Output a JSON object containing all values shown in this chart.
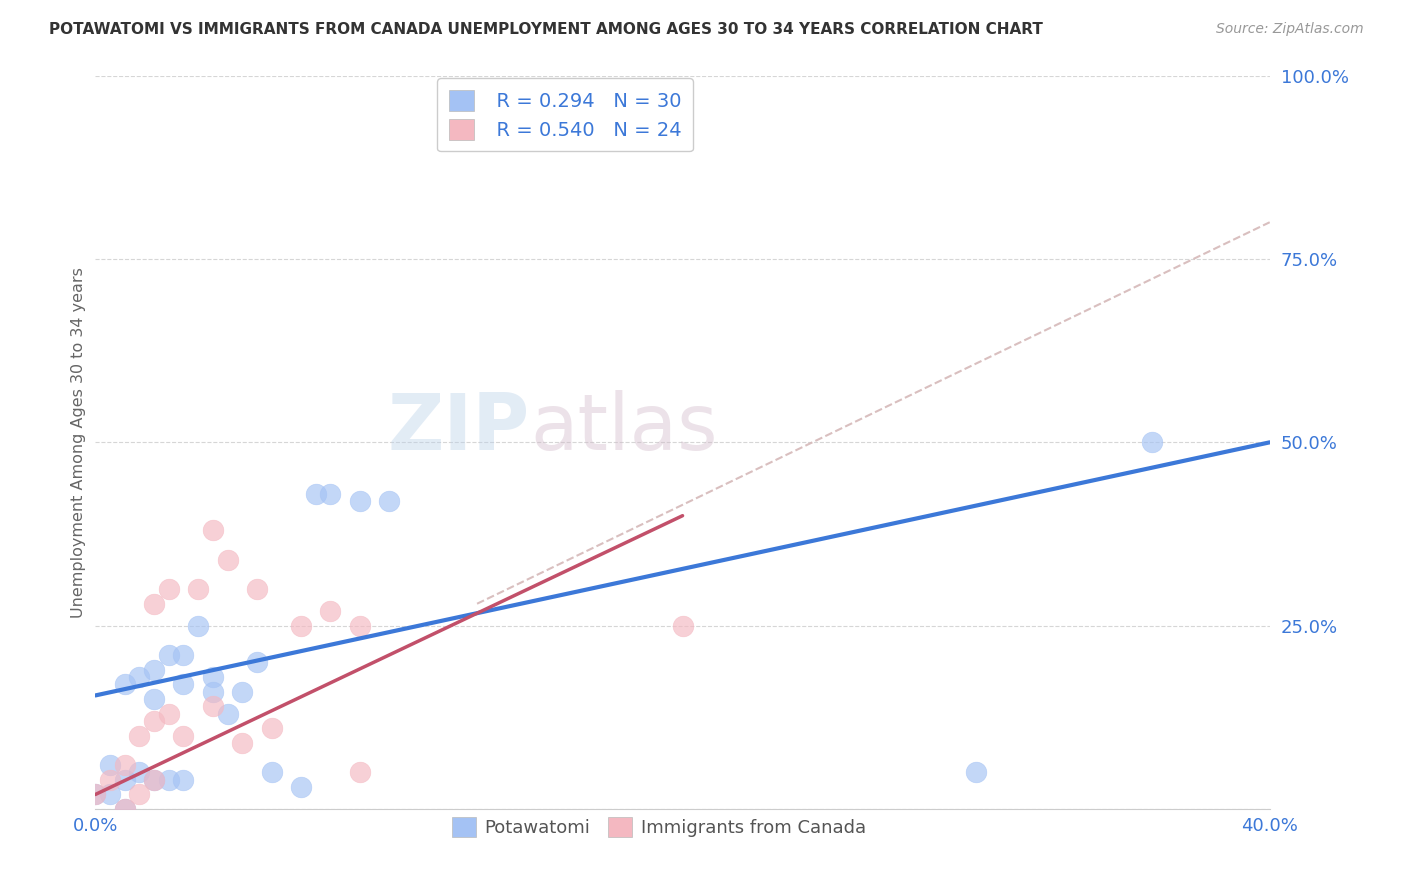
{
  "title": "POTAWATOMI VS IMMIGRANTS FROM CANADA UNEMPLOYMENT AMONG AGES 30 TO 34 YEARS CORRELATION CHART",
  "source": "Source: ZipAtlas.com",
  "ylabel": "Unemployment Among Ages 30 to 34 years",
  "xmin": 0.0,
  "xmax": 0.4,
  "ymin": 0.0,
  "ymax": 1.0,
  "xticks": [
    0.0,
    0.08,
    0.16,
    0.24,
    0.32,
    0.4
  ],
  "ytick_positions": [
    0.0,
    0.25,
    0.5,
    0.75,
    1.0
  ],
  "legend1_r": "R = 0.294",
  "legend1_n": "N = 30",
  "legend2_r": "R = 0.540",
  "legend2_n": "N = 24",
  "blue_scatter_color": "#a4c2f4",
  "pink_scatter_color": "#f4b8c1",
  "blue_line_color": "#3c78d8",
  "pink_line_color": "#c2506a",
  "dashed_line_color": "#d5b8b8",
  "watermark_zip": "ZIP",
  "watermark_atlas": "atlas",
  "potawatomi_x": [
    0.0,
    0.005,
    0.005,
    0.01,
    0.01,
    0.01,
    0.015,
    0.015,
    0.02,
    0.02,
    0.02,
    0.025,
    0.025,
    0.03,
    0.03,
    0.03,
    0.035,
    0.04,
    0.04,
    0.045,
    0.05,
    0.055,
    0.06,
    0.07,
    0.075,
    0.08,
    0.09,
    0.1,
    0.3,
    0.36
  ],
  "potawatomi_y": [
    0.02,
    0.02,
    0.06,
    0.0,
    0.04,
    0.17,
    0.05,
    0.18,
    0.04,
    0.15,
    0.19,
    0.04,
    0.21,
    0.04,
    0.17,
    0.21,
    0.25,
    0.18,
    0.16,
    0.13,
    0.16,
    0.2,
    0.05,
    0.03,
    0.43,
    0.43,
    0.42,
    0.42,
    0.05,
    0.5
  ],
  "canada_x": [
    0.0,
    0.005,
    0.01,
    0.01,
    0.015,
    0.015,
    0.02,
    0.02,
    0.02,
    0.025,
    0.025,
    0.03,
    0.035,
    0.04,
    0.04,
    0.045,
    0.05,
    0.055,
    0.06,
    0.07,
    0.08,
    0.09,
    0.09,
    0.2
  ],
  "canada_y": [
    0.02,
    0.04,
    0.0,
    0.06,
    0.02,
    0.1,
    0.04,
    0.12,
    0.28,
    0.13,
    0.3,
    0.1,
    0.3,
    0.14,
    0.38,
    0.34,
    0.09,
    0.3,
    0.11,
    0.25,
    0.27,
    0.25,
    0.05,
    0.25
  ],
  "blue_line_x0": 0.0,
  "blue_line_y0": 0.155,
  "blue_line_x1": 0.4,
  "blue_line_y1": 0.5,
  "pink_line_x0": 0.0,
  "pink_line_y0": 0.02,
  "pink_line_x1": 0.2,
  "pink_line_y1": 0.4,
  "dashed_line_x0": 0.13,
  "dashed_line_y0": 0.28,
  "dashed_line_x1": 0.4,
  "dashed_line_y1": 0.8,
  "background_color": "#ffffff",
  "grid_color": "#cccccc"
}
